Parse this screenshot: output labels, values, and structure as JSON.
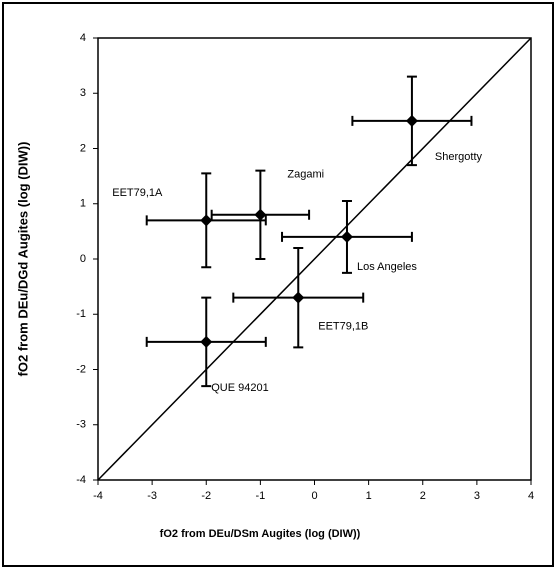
{
  "chart_data": {
    "type": "scatter",
    "xlabel": "fO2 from DEu/DSm Augites (log (DIW))",
    "ylabel": "fO2 from DEu/DGd Augites (log (DIW))",
    "labels": [
      "Shergotty",
      "Zagami",
      "EET79,1A",
      "Los Angeles",
      "EET79,1B",
      "QUE 94201"
    ],
    "x": [
      1.8,
      -1.0,
      -2.0,
      0.6,
      -0.3,
      -2.0
    ],
    "y": [
      2.5,
      0.8,
      0.7,
      0.4,
      -0.7,
      -1.5
    ],
    "xerr": [
      1.1,
      0.9,
      1.1,
      1.2,
      1.2,
      1.1
    ],
    "yerr": [
      0.8,
      0.8,
      0.85,
      0.65,
      0.9,
      0.8
    ],
    "color": "#000000",
    "identity_line": true,
    "xlim": [
      -4,
      4
    ],
    "ylim": [
      -4,
      4
    ],
    "xticks": [
      -4,
      -3,
      -2,
      -1,
      0,
      1,
      2,
      3,
      4
    ],
    "yticks": [
      -4,
      -3,
      -2,
      -1,
      0,
      1,
      2,
      3,
      4
    ]
  }
}
